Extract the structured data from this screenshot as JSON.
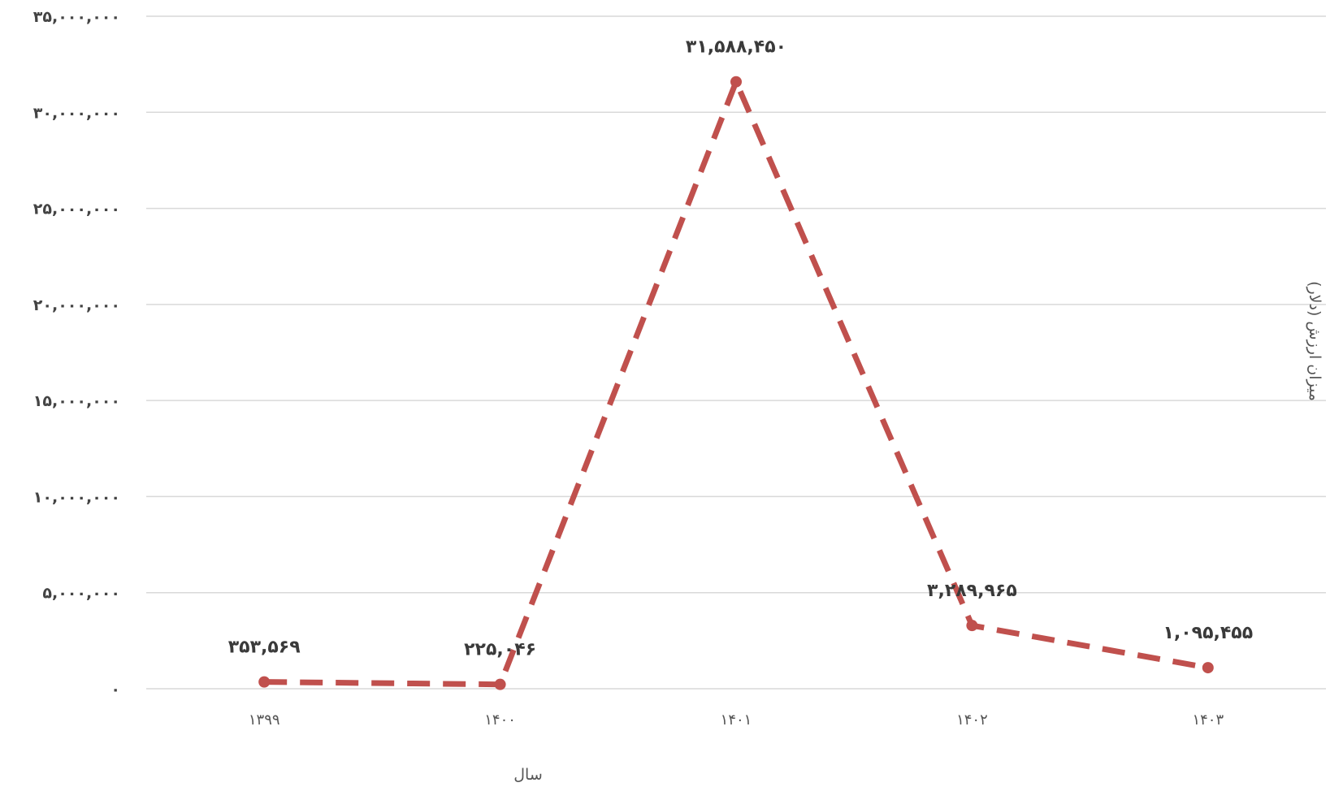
{
  "chart_data": {
    "type": "line",
    "categories": [
      "۱۳۹۹",
      "۱۴۰۰",
      "۱۴۰۱",
      "۱۴۰۲",
      "۱۴۰۳"
    ],
    "values": [
      353569,
      225046,
      31588450,
      3289965,
      1095455
    ],
    "data_labels": [
      "۳۵۳,۵۶۹",
      "۲۲۵,۰۴۶",
      "۳۱,۵۸۸,۴۵۰",
      "۳,۲۸۹,۹۶۵",
      "۱,۰۹۵,۴۵۵"
    ],
    "yticks": [
      0,
      5000000,
      10000000,
      15000000,
      20000000,
      25000000,
      30000000,
      35000000
    ],
    "ytick_labels": [
      "۰",
      "۵,۰۰۰,۰۰۰",
      "۱۰,۰۰۰,۰۰۰",
      "۱۵,۰۰۰,۰۰۰",
      "۲۰,۰۰۰,۰۰۰",
      "۲۵,۰۰۰,۰۰۰",
      "۳۰,۰۰۰,۰۰۰",
      "۳۵,۰۰۰,۰۰۰"
    ],
    "ylim": [
      0,
      35000000
    ],
    "xlabel": "سال",
    "ylabel": "میزان ارزش (دلار)",
    "line_style": "dashed",
    "color": "#c0504d",
    "grid": true,
    "legend": "none"
  }
}
